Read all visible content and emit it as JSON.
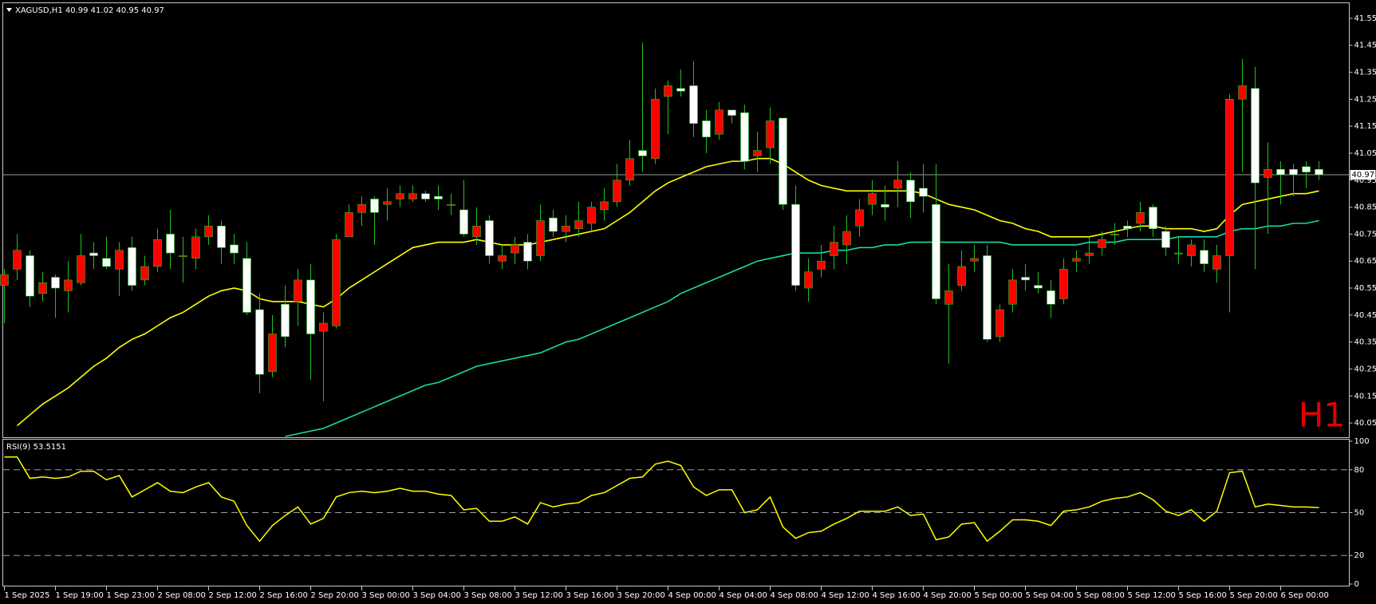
{
  "chart_data": [
    {
      "type": "candlestick",
      "title": "XAGUSD,H1 40.99 41.02 40.95 40.97",
      "watermark": "H1",
      "categories": [
        "1 Sep 2025",
        null,
        null,
        null,
        "1 Sep 19:00",
        null,
        null,
        null,
        "1 Sep 23:00",
        null,
        null,
        null,
        "2 Sep 08:00",
        null,
        null,
        null,
        "2 Sep 12:00",
        null,
        null,
        null,
        "2 Sep 16:00",
        null,
        null,
        null,
        "2 Sep 20:00",
        null,
        null,
        null,
        "3 Sep 00:00",
        null,
        null,
        null,
        "3 Sep 04:00",
        null,
        null,
        null,
        "3 Sep 08:00",
        null,
        null,
        null,
        "3 Sep 12:00",
        null,
        null,
        null,
        "3 Sep 16:00",
        null,
        null,
        null,
        "3 Sep 20:00",
        null,
        null,
        null,
        "4 Sep 00:00",
        null,
        null,
        null,
        "4 Sep 04:00",
        null,
        null,
        null,
        "4 Sep 08:00",
        null,
        null,
        null,
        "4 Sep 12:00",
        null,
        null,
        null,
        "4 Sep 16:00",
        null,
        null,
        null,
        "4 Sep 20:00",
        null,
        null,
        null,
        "5 Sep 00:00",
        null,
        null,
        null,
        "5 Sep 04:00",
        null,
        null,
        null,
        "5 Sep 08:00",
        null,
        null,
        null,
        "5 Sep 12:00",
        null,
        null,
        null,
        "5 Sep 16:00",
        null,
        null,
        null,
        "5 Sep 20:00",
        null,
        null,
        null,
        "6 Sep 00:00",
        null,
        null,
        null
      ],
      "open": [
        40.56,
        40.62,
        40.67,
        40.53,
        40.59,
        40.54,
        40.57,
        40.68,
        40.66,
        40.62,
        40.7,
        40.58,
        40.63,
        40.75,
        40.67,
        40.66,
        40.74,
        40.78,
        40.71,
        40.66,
        40.47,
        40.24,
        40.49,
        40.5,
        40.58,
        40.39,
        40.41,
        40.74,
        40.83,
        40.88,
        40.86,
        40.88,
        40.88,
        40.9,
        40.89,
        40.86,
        40.84,
        40.74,
        40.8,
        40.65,
        40.68,
        40.72,
        40.67,
        40.81,
        40.76,
        40.77,
        40.79,
        40.84,
        40.87,
        40.95,
        41.06,
        41.03,
        41.26,
        41.29,
        41.3,
        41.17,
        41.12,
        41.21,
        41.2,
        41.04,
        41.07,
        41.18,
        40.86,
        40.55,
        40.62,
        40.67,
        40.71,
        40.78,
        40.86,
        40.86,
        40.92,
        40.95,
        40.92,
        40.86,
        40.49,
        40.56,
        40.65,
        40.67,
        40.37,
        40.49,
        40.59,
        40.56,
        40.54,
        40.51,
        40.65,
        40.67,
        40.7,
        40.75,
        40.78,
        40.79,
        40.85,
        40.76,
        40.68,
        40.67,
        40.69,
        40.62,
        40.67,
        41.25,
        41.29,
        40.96,
        40.99,
        40.99,
        41.0,
        40.99
      ],
      "high": [
        40.62,
        40.75,
        40.69,
        40.61,
        40.6,
        40.65,
        40.75,
        40.72,
        40.74,
        40.72,
        40.74,
        40.67,
        40.77,
        40.84,
        40.74,
        40.77,
        40.82,
        40.8,
        40.75,
        40.72,
        40.53,
        40.45,
        40.56,
        40.62,
        40.64,
        40.46,
        40.75,
        40.86,
        40.89,
        40.89,
        40.92,
        40.93,
        40.93,
        40.91,
        40.93,
        40.9,
        40.95,
        40.85,
        40.82,
        40.71,
        40.74,
        40.75,
        40.86,
        40.84,
        40.82,
        40.87,
        40.87,
        40.92,
        41.01,
        41.1,
        41.46,
        41.29,
        41.32,
        41.36,
        41.39,
        41.21,
        41.24,
        41.21,
        41.23,
        41.13,
        41.22,
        41.18,
        40.93,
        40.66,
        40.71,
        40.78,
        40.82,
        40.88,
        40.95,
        40.93,
        41.02,
        40.98,
        41.01,
        41.01,
        40.64,
        40.69,
        40.71,
        40.71,
        40.49,
        40.62,
        40.64,
        40.61,
        40.58,
        40.66,
        40.69,
        40.74,
        40.76,
        40.79,
        40.8,
        40.87,
        40.86,
        40.78,
        40.74,
        40.73,
        40.73,
        40.71,
        41.27,
        41.4,
        41.37,
        41.09,
        41.02,
        41.01,
        41.02,
        41.02
      ],
      "low": [
        40.42,
        40.58,
        40.48,
        40.5,
        40.44,
        40.46,
        40.56,
        40.62,
        40.62,
        40.52,
        40.54,
        40.56,
        40.61,
        40.62,
        40.57,
        40.62,
        40.71,
        40.64,
        40.64,
        40.45,
        40.16,
        40.22,
        40.33,
        40.41,
        40.21,
        40.13,
        40.4,
        40.74,
        40.78,
        40.71,
        40.8,
        40.85,
        40.87,
        40.87,
        40.84,
        40.82,
        40.74,
        40.71,
        40.64,
        40.62,
        40.64,
        40.62,
        40.65,
        40.74,
        40.72,
        40.74,
        40.76,
        40.8,
        40.85,
        40.93,
        40.98,
        41.01,
        41.12,
        41.26,
        41.11,
        41.05,
        41.1,
        41.16,
        40.99,
        40.98,
        41.01,
        40.84,
        40.54,
        40.5,
        40.59,
        40.62,
        40.64,
        40.74,
        40.82,
        40.8,
        40.85,
        40.81,
        40.83,
        40.49,
        40.27,
        40.54,
        40.61,
        40.35,
        40.35,
        40.46,
        40.54,
        40.53,
        40.44,
        40.49,
        40.61,
        40.64,
        40.67,
        40.71,
        40.74,
        40.76,
        40.74,
        40.67,
        40.64,
        40.63,
        40.61,
        40.57,
        40.46,
        40.98,
        40.62,
        40.75,
        40.86,
        40.89,
        40.92,
        40.95
      ],
      "close": [
        40.6,
        40.69,
        40.52,
        40.57,
        40.55,
        40.58,
        40.67,
        40.67,
        40.63,
        40.69,
        40.56,
        40.63,
        40.73,
        40.68,
        40.67,
        40.74,
        40.78,
        40.7,
        40.68,
        40.46,
        40.23,
        40.38,
        40.37,
        40.58,
        40.38,
        40.42,
        40.73,
        40.83,
        40.86,
        40.83,
        40.87,
        40.9,
        40.9,
        40.88,
        40.88,
        40.86,
        40.75,
        40.78,
        40.67,
        40.67,
        40.71,
        40.65,
        40.8,
        40.76,
        40.78,
        40.8,
        40.85,
        40.87,
        40.95,
        41.03,
        41.04,
        41.25,
        41.3,
        41.28,
        41.16,
        41.11,
        41.21,
        41.19,
        41.02,
        41.06,
        41.17,
        40.86,
        40.56,
        40.61,
        40.65,
        40.72,
        40.76,
        40.84,
        40.9,
        40.85,
        40.95,
        40.87,
        40.89,
        40.51,
        40.54,
        40.63,
        40.66,
        40.36,
        40.47,
        40.58,
        40.58,
        40.55,
        40.49,
        40.62,
        40.66,
        40.68,
        40.73,
        40.75,
        40.77,
        40.83,
        40.77,
        40.7,
        40.68,
        40.71,
        40.64,
        40.67,
        41.25,
        41.3,
        40.94,
        40.99,
        40.97,
        40.97,
        40.98,
        40.97
      ],
      "up_color": "#ff0000",
      "down_color": "#ffffff",
      "wick_color": "#1fbf1f",
      "lines": [
        {
          "color": "#ffff00",
          "values": [
            null,
            40.04,
            40.08,
            40.12,
            40.15,
            40.18,
            40.22,
            40.26,
            40.29,
            40.33,
            40.36,
            40.38,
            40.41,
            40.44,
            40.46,
            40.49,
            40.52,
            40.54,
            40.55,
            40.54,
            40.51,
            40.5,
            40.5,
            40.5,
            40.49,
            40.48,
            40.51,
            40.55,
            40.58,
            40.61,
            40.64,
            40.67,
            40.7,
            40.71,
            40.72,
            40.72,
            40.72,
            40.73,
            40.72,
            40.71,
            40.71,
            40.71,
            40.72,
            40.73,
            40.74,
            40.75,
            40.76,
            40.77,
            40.8,
            40.83,
            40.87,
            40.91,
            40.94,
            40.96,
            40.98,
            41.0,
            41.01,
            41.02,
            41.02,
            41.03,
            41.03,
            41.01,
            40.98,
            40.95,
            40.93,
            40.92,
            40.91,
            40.91,
            40.91,
            40.91,
            40.91,
            40.91,
            40.9,
            40.88,
            40.86,
            40.85,
            40.84,
            40.82,
            40.8,
            40.79,
            40.77,
            40.76,
            40.74,
            40.74,
            40.74,
            40.74,
            40.75,
            40.76,
            40.77,
            40.78,
            40.78,
            40.77,
            40.77,
            40.77,
            40.76,
            40.77,
            40.82,
            40.86,
            40.87,
            40.88,
            40.89,
            40.9,
            40.9,
            40.91
          ]
        },
        {
          "color": "#19d9a6",
          "values": [
            null,
            null,
            null,
            null,
            null,
            null,
            null,
            null,
            null,
            null,
            null,
            null,
            null,
            null,
            null,
            null,
            null,
            null,
            null,
            null,
            null,
            null,
            40.0,
            40.01,
            40.02,
            40.03,
            40.05,
            40.07,
            40.09,
            40.11,
            40.13,
            40.15,
            40.17,
            40.19,
            40.2,
            40.22,
            40.24,
            40.26,
            40.27,
            40.28,
            40.29,
            40.3,
            40.31,
            40.33,
            40.35,
            40.36,
            40.38,
            40.4,
            40.42,
            40.44,
            40.46,
            40.48,
            40.5,
            40.53,
            40.55,
            40.57,
            40.59,
            40.61,
            40.63,
            40.65,
            40.66,
            40.67,
            40.68,
            40.68,
            40.68,
            40.69,
            40.69,
            40.7,
            40.7,
            40.71,
            40.71,
            40.72,
            40.72,
            40.72,
            40.72,
            40.72,
            40.72,
            40.72,
            40.72,
            40.71,
            40.71,
            40.71,
            40.71,
            40.71,
            40.71,
            40.72,
            40.72,
            40.72,
            40.73,
            40.73,
            40.73,
            40.73,
            40.74,
            40.74,
            40.74,
            40.74,
            40.76,
            40.77,
            40.77,
            40.78,
            40.78,
            40.79,
            40.79,
            40.8
          ]
        }
      ],
      "current_price": 40.97,
      "ylim": [
        40.0,
        41.6
      ],
      "yticks": [
        40.05,
        40.15,
        40.25,
        40.35,
        40.45,
        40.55,
        40.65,
        40.75,
        40.85,
        40.95,
        41.05,
        41.15,
        41.25,
        41.35,
        41.45,
        41.55
      ]
    },
    {
      "type": "line",
      "title": "RSI(9) 53.5151",
      "color": "#ffff00",
      "values": [
        89,
        89,
        74,
        75,
        74,
        75,
        79,
        79,
        73,
        76,
        61,
        66,
        71,
        65,
        64,
        68,
        71,
        61,
        58,
        41,
        30,
        41,
        48,
        54,
        42,
        46,
        61,
        64,
        65,
        64,
        65,
        67,
        65,
        65,
        63,
        62,
        52,
        53,
        44,
        44,
        47,
        42,
        57,
        54,
        56,
        57,
        62,
        64,
        69,
        74,
        75,
        84,
        86,
        83,
        68,
        62,
        66,
        66,
        50,
        52,
        61,
        40,
        32,
        36,
        37,
        42,
        46,
        51,
        51,
        51,
        54,
        48,
        49,
        31,
        33,
        42,
        43,
        30,
        37,
        45,
        45,
        44,
        41,
        51,
        52,
        54,
        58,
        60,
        61,
        64,
        59,
        51,
        48,
        52,
        44,
        51,
        78,
        79,
        54,
        56,
        55,
        54,
        54,
        53.5151
      ],
      "levels": [
        20,
        50,
        80
      ],
      "ylim": [
        0,
        100
      ],
      "yticks": [
        0,
        20,
        50,
        80,
        100
      ]
    }
  ]
}
